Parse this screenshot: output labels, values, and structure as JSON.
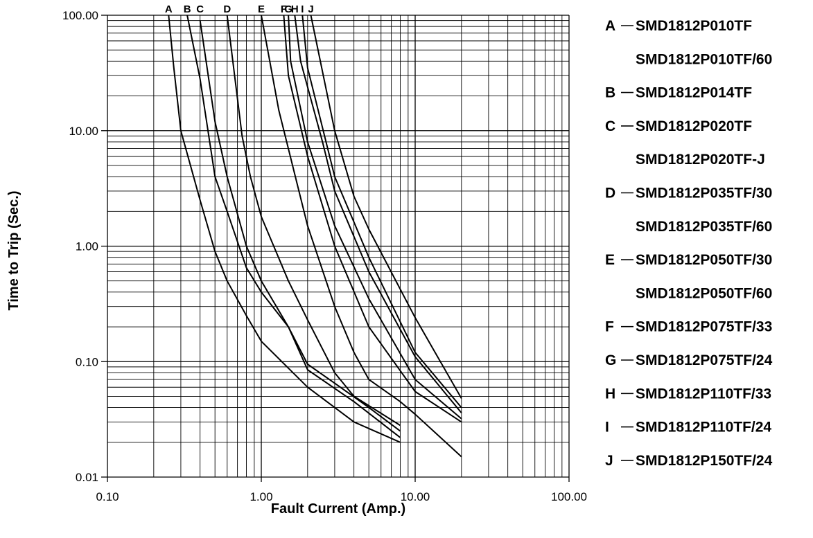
{
  "chart_data": {
    "type": "line",
    "title": "",
    "xlabel": "Fault Current (Amp.)",
    "ylabel": "Time to Trip (Sec.)",
    "x_scale": "log",
    "y_scale": "log",
    "xlim": [
      0.1,
      100
    ],
    "ylim": [
      0.01,
      100
    ],
    "x_tick_labels": [
      "0.10",
      "1.00",
      "10.00",
      "100.00"
    ],
    "y_tick_labels": [
      "0.01",
      "0.10",
      "1.00",
      "10.00",
      "100.00"
    ],
    "grid": true,
    "legend_position": "right",
    "series": [
      {
        "name": "A",
        "points": [
          [
            0.25,
            100
          ],
          [
            0.27,
            35
          ],
          [
            0.3,
            10
          ],
          [
            0.4,
            2.5
          ],
          [
            0.5,
            0.9
          ],
          [
            0.6,
            0.5
          ],
          [
            0.8,
            0.25
          ],
          [
            1.0,
            0.15
          ],
          [
            2.0,
            0.06
          ],
          [
            4.0,
            0.03
          ],
          [
            8.0,
            0.02
          ]
        ]
      },
      {
        "name": "B",
        "points": [
          [
            0.33,
            100
          ],
          [
            0.4,
            28
          ],
          [
            0.5,
            4
          ],
          [
            0.6,
            2
          ],
          [
            0.8,
            0.65
          ],
          [
            1.0,
            0.4
          ],
          [
            1.5,
            0.2
          ],
          [
            2.0,
            0.085
          ],
          [
            4.0,
            0.045
          ],
          [
            8.0,
            0.022
          ]
        ]
      },
      {
        "name": "C",
        "points": [
          [
            0.4,
            90
          ],
          [
            0.5,
            12
          ],
          [
            0.6,
            4
          ],
          [
            0.8,
            1.0
          ],
          [
            1.0,
            0.5
          ],
          [
            1.5,
            0.2
          ],
          [
            2.0,
            0.095
          ],
          [
            3.0,
            0.065
          ],
          [
            5.0,
            0.04
          ],
          [
            8.0,
            0.025
          ]
        ]
      },
      {
        "name": "D",
        "points": [
          [
            0.6,
            100
          ],
          [
            0.75,
            9
          ],
          [
            0.85,
            4
          ],
          [
            1.0,
            1.8
          ],
          [
            1.5,
            0.5
          ],
          [
            2.0,
            0.23
          ],
          [
            3.0,
            0.08
          ],
          [
            4.0,
            0.05
          ],
          [
            8.0,
            0.028
          ]
        ]
      },
      {
        "name": "E",
        "points": [
          [
            1.0,
            100
          ],
          [
            1.3,
            15
          ],
          [
            2.0,
            1.5
          ],
          [
            3.0,
            0.3
          ],
          [
            4.0,
            0.12
          ],
          [
            5.0,
            0.07
          ],
          [
            8.0,
            0.045
          ],
          [
            10.0,
            0.035
          ],
          [
            20.0,
            0.015
          ]
        ]
      },
      {
        "name": "F",
        "points": [
          [
            1.4,
            100
          ],
          [
            1.5,
            30
          ],
          [
            2.0,
            6
          ],
          [
            3.0,
            1.0
          ],
          [
            5.0,
            0.2
          ],
          [
            10.0,
            0.055
          ],
          [
            20.0,
            0.03
          ]
        ]
      },
      {
        "name": "G",
        "points": [
          [
            1.5,
            100
          ],
          [
            1.55,
            40
          ],
          [
            2.0,
            8
          ],
          [
            3.0,
            1.5
          ],
          [
            5.0,
            0.35
          ],
          [
            10.0,
            0.07
          ],
          [
            20.0,
            0.032
          ]
        ]
      },
      {
        "name": "H",
        "points": [
          [
            1.65,
            100
          ],
          [
            1.8,
            40
          ],
          [
            2.5,
            8
          ],
          [
            3.0,
            3
          ],
          [
            5.0,
            0.6
          ],
          [
            10.0,
            0.11
          ],
          [
            20.0,
            0.036
          ]
        ]
      },
      {
        "name": "I",
        "points": [
          [
            1.85,
            100
          ],
          [
            2.0,
            35
          ],
          [
            3.0,
            4
          ],
          [
            5.0,
            0.8
          ],
          [
            10.0,
            0.12
          ],
          [
            20.0,
            0.04
          ]
        ]
      },
      {
        "name": "J",
        "points": [
          [
            2.1,
            100
          ],
          [
            3.0,
            10
          ],
          [
            4.0,
            2.7
          ],
          [
            5.0,
            1.4
          ],
          [
            10.0,
            0.24
          ],
          [
            20.0,
            0.048
          ]
        ]
      }
    ],
    "legend": [
      {
        "letter": "A",
        "parts": [
          "SMD1812P010TF",
          "SMD1812P010TF/60"
        ]
      },
      {
        "letter": "B",
        "parts": [
          "SMD1812P014TF"
        ]
      },
      {
        "letter": "C",
        "parts": [
          "SMD1812P020TF",
          "SMD1812P020TF-J"
        ]
      },
      {
        "letter": "D",
        "parts": [
          "SMD1812P035TF/30",
          "SMD1812P035TF/60"
        ]
      },
      {
        "letter": "E",
        "parts": [
          "SMD1812P050TF/30",
          "SMD1812P050TF/60"
        ]
      },
      {
        "letter": "F",
        "parts": [
          "SMD1812P075TF/33"
        ]
      },
      {
        "letter": "G",
        "parts": [
          "SMD1812P075TF/24"
        ]
      },
      {
        "letter": "H",
        "parts": [
          "SMD1812P110TF/33"
        ]
      },
      {
        "letter": "I",
        "parts": [
          "SMD1812P110TF/24"
        ]
      },
      {
        "letter": "J",
        "parts": [
          "SMD1812P150TF/24"
        ]
      }
    ]
  }
}
